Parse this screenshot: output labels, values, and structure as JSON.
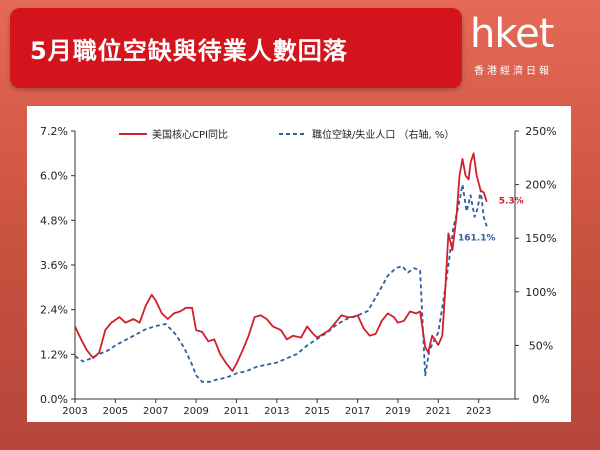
{
  "header": {
    "title": "5月職位空缺與待業人數回落"
  },
  "logo": {
    "name": "hket",
    "subtitle": "香港經濟日報"
  },
  "colors": {
    "cpi": "#d0202a",
    "jobs": "#2d5e9e",
    "title_bg": "#d3141c"
  },
  "chart_data": {
    "type": "line",
    "x_ticks": [
      "2003",
      "2005",
      "2007",
      "2009",
      "2011",
      "2013",
      "2015",
      "2017",
      "2019",
      "2021",
      "2023"
    ],
    "y_left_ticks": [
      "0.0%",
      "1.2%",
      "2.4%",
      "3.6%",
      "4.8%",
      "6.0%",
      "7.2%"
    ],
    "y_right_ticks": [
      "0%",
      "50%",
      "100%",
      "150%",
      "200%",
      "250%"
    ],
    "ylim_left": [
      0,
      7.2
    ],
    "ylim_right": [
      0,
      250
    ],
    "xlim": [
      2003,
      2024.8
    ],
    "series": [
      {
        "name": "美国核心CPI同比",
        "axis": "left",
        "end_label": "5.3%",
        "points": [
          [
            2003.0,
            1.95
          ],
          [
            2003.3,
            1.6
          ],
          [
            2003.6,
            1.3
          ],
          [
            2003.9,
            1.1
          ],
          [
            2004.2,
            1.25
          ],
          [
            2004.5,
            1.85
          ],
          [
            2004.8,
            2.05
          ],
          [
            2005.2,
            2.2
          ],
          [
            2005.5,
            2.05
          ],
          [
            2005.9,
            2.15
          ],
          [
            2006.2,
            2.05
          ],
          [
            2006.5,
            2.5
          ],
          [
            2006.8,
            2.8
          ],
          [
            2007.0,
            2.65
          ],
          [
            2007.3,
            2.3
          ],
          [
            2007.6,
            2.15
          ],
          [
            2007.9,
            2.3
          ],
          [
            2008.2,
            2.35
          ],
          [
            2008.5,
            2.45
          ],
          [
            2008.8,
            2.45
          ],
          [
            2009.0,
            1.85
          ],
          [
            2009.3,
            1.8
          ],
          [
            2009.6,
            1.55
          ],
          [
            2009.9,
            1.6
          ],
          [
            2010.2,
            1.2
          ],
          [
            2010.5,
            0.95
          ],
          [
            2010.8,
            0.75
          ],
          [
            2011.0,
            0.95
          ],
          [
            2011.3,
            1.3
          ],
          [
            2011.6,
            1.7
          ],
          [
            2011.9,
            2.2
          ],
          [
            2012.2,
            2.25
          ],
          [
            2012.5,
            2.15
          ],
          [
            2012.8,
            1.95
          ],
          [
            2013.2,
            1.85
          ],
          [
            2013.5,
            1.6
          ],
          [
            2013.8,
            1.7
          ],
          [
            2014.2,
            1.65
          ],
          [
            2014.5,
            1.95
          ],
          [
            2014.8,
            1.75
          ],
          [
            2015.0,
            1.65
          ],
          [
            2015.3,
            1.75
          ],
          [
            2015.6,
            1.85
          ],
          [
            2015.9,
            2.05
          ],
          [
            2016.2,
            2.25
          ],
          [
            2016.5,
            2.2
          ],
          [
            2016.8,
            2.2
          ],
          [
            2017.0,
            2.25
          ],
          [
            2017.3,
            1.9
          ],
          [
            2017.6,
            1.7
          ],
          [
            2017.9,
            1.75
          ],
          [
            2018.2,
            2.1
          ],
          [
            2018.5,
            2.3
          ],
          [
            2018.8,
            2.2
          ],
          [
            2019.0,
            2.05
          ],
          [
            2019.3,
            2.1
          ],
          [
            2019.6,
            2.35
          ],
          [
            2019.9,
            2.3
          ],
          [
            2020.1,
            2.35
          ],
          [
            2020.35,
            1.4
          ],
          [
            2020.5,
            1.25
          ],
          [
            2020.7,
            1.7
          ],
          [
            2021.0,
            1.45
          ],
          [
            2021.2,
            1.7
          ],
          [
            2021.35,
            3.0
          ],
          [
            2021.5,
            4.45
          ],
          [
            2021.7,
            4.0
          ],
          [
            2021.9,
            4.9
          ],
          [
            2022.05,
            6.0
          ],
          [
            2022.2,
            6.45
          ],
          [
            2022.35,
            6.0
          ],
          [
            2022.5,
            5.9
          ],
          [
            2022.6,
            6.35
          ],
          [
            2022.75,
            6.6
          ],
          [
            2022.9,
            6.0
          ],
          [
            2023.1,
            5.6
          ],
          [
            2023.25,
            5.55
          ],
          [
            2023.4,
            5.3
          ]
        ]
      },
      {
        "name": "職位空缺/失业人口 （右轴, %）",
        "axis": "right",
        "end_label": "161.1%",
        "points": [
          [
            2003.0,
            40
          ],
          [
            2003.4,
            35
          ],
          [
            2003.8,
            38
          ],
          [
            2004.2,
            42
          ],
          [
            2004.6,
            45
          ],
          [
            2005.0,
            50
          ],
          [
            2005.5,
            55
          ],
          [
            2006.0,
            60
          ],
          [
            2006.5,
            65
          ],
          [
            2007.0,
            68
          ],
          [
            2007.5,
            70
          ],
          [
            2008.0,
            60
          ],
          [
            2008.4,
            48
          ],
          [
            2008.8,
            32
          ],
          [
            2009.0,
            22
          ],
          [
            2009.3,
            16
          ],
          [
            2009.7,
            16
          ],
          [
            2010.0,
            18
          ],
          [
            2010.5,
            20
          ],
          [
            2011.0,
            24
          ],
          [
            2011.5,
            26
          ],
          [
            2012.0,
            30
          ],
          [
            2012.5,
            32
          ],
          [
            2013.0,
            34
          ],
          [
            2013.5,
            38
          ],
          [
            2014.0,
            42
          ],
          [
            2014.5,
            50
          ],
          [
            2015.0,
            56
          ],
          [
            2015.5,
            62
          ],
          [
            2016.0,
            70
          ],
          [
            2016.5,
            75
          ],
          [
            2017.0,
            78
          ],
          [
            2017.5,
            82
          ],
          [
            2018.0,
            98
          ],
          [
            2018.5,
            115
          ],
          [
            2018.9,
            122
          ],
          [
            2019.2,
            124
          ],
          [
            2019.5,
            118
          ],
          [
            2019.8,
            122
          ],
          [
            2020.1,
            120
          ],
          [
            2020.25,
            60
          ],
          [
            2020.35,
            22
          ],
          [
            2020.55,
            45
          ],
          [
            2020.8,
            55
          ],
          [
            2021.0,
            62
          ],
          [
            2021.3,
            98
          ],
          [
            2021.5,
            125
          ],
          [
            2021.75,
            160
          ],
          [
            2022.0,
            180
          ],
          [
            2022.2,
            200
          ],
          [
            2022.4,
            175
          ],
          [
            2022.6,
            190
          ],
          [
            2022.8,
            170
          ],
          [
            2022.95,
            178
          ],
          [
            2023.1,
            195
          ],
          [
            2023.25,
            170
          ],
          [
            2023.4,
            161.1
          ]
        ]
      }
    ]
  }
}
